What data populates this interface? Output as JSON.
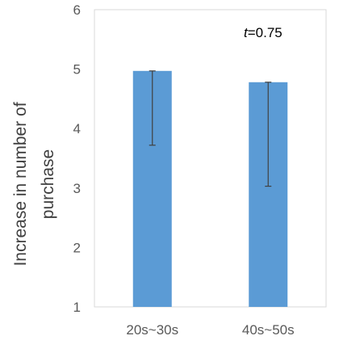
{
  "chart_data": {
    "type": "bar",
    "categories": [
      "20s~30s",
      "40s~50s"
    ],
    "values": [
      4.97,
      4.78
    ],
    "error_bars": {
      "lower": [
        3.72,
        3.03
      ],
      "upper": [
        4.97,
        4.78
      ]
    },
    "ylabel": "Increase in number of purchase",
    "ylabel_lines": [
      "Increase in number of",
      "purchase"
    ],
    "ylim": [
      1,
      6
    ],
    "yticks": [
      "1",
      "2",
      "3",
      "4",
      "5",
      "6"
    ],
    "annotation": {
      "italic_part": "t",
      "rest": "=0.75"
    },
    "legend": "none",
    "grid": false,
    "bar_color": "#5b9bd5",
    "error_color": "#404040"
  }
}
